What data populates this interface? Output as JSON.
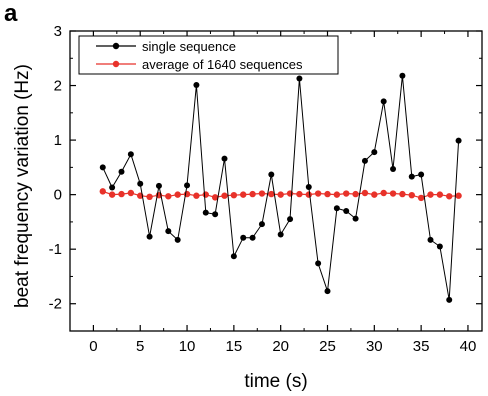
{
  "panel_label": "a",
  "chart_data": {
    "type": "line",
    "title": "",
    "xlabel": "time (s)",
    "ylabel": "beat frequency variation (Hz)",
    "xlim": [
      -2.5,
      41.5
    ],
    "ylim": [
      -2.5,
      3
    ],
    "xticks": [
      0,
      5,
      10,
      15,
      20,
      25,
      30,
      35,
      40
    ],
    "yticks": [
      -2,
      -1,
      0,
      1,
      2,
      3
    ],
    "grid": false,
    "legend_position": "top-left",
    "series": [
      {
        "name": "single sequence",
        "color": "#000000",
        "marker": "circle",
        "x": [
          1,
          2,
          3,
          4,
          5,
          6,
          7,
          8,
          9,
          10,
          11,
          12,
          13,
          14,
          15,
          16,
          17,
          18,
          19,
          20,
          21,
          22,
          23,
          24,
          25,
          26,
          27,
          28,
          29,
          30,
          31,
          32,
          33,
          34,
          35,
          36,
          37,
          38,
          39
        ],
        "values": [
          0.5,
          0.13,
          0.42,
          0.74,
          0.2,
          -0.77,
          0.16,
          -0.67,
          -0.83,
          0.17,
          2.01,
          -0.33,
          -0.36,
          0.66,
          -1.13,
          -0.79,
          -0.79,
          -0.54,
          0.37,
          -0.73,
          -0.45,
          2.13,
          0.14,
          -1.26,
          -1.77,
          -0.25,
          -0.3,
          -0.44,
          0.62,
          0.78,
          1.71,
          0.47,
          2.18,
          0.33,
          0.37,
          -0.83,
          -0.95,
          -1.93,
          0.99
        ]
      },
      {
        "name": "average of 1640 sequences",
        "color": "#e8322a",
        "marker": "circle",
        "x": [
          1,
          2,
          3,
          4,
          5,
          6,
          7,
          8,
          9,
          10,
          11,
          12,
          13,
          14,
          15,
          16,
          17,
          18,
          19,
          20,
          21,
          22,
          23,
          24,
          25,
          26,
          27,
          28,
          29,
          30,
          31,
          32,
          33,
          34,
          35,
          36,
          37,
          38,
          39
        ],
        "values": [
          0.06,
          0.0,
          0.01,
          0.03,
          -0.02,
          -0.04,
          -0.01,
          -0.03,
          0.0,
          0.01,
          -0.02,
          0.0,
          -0.05,
          -0.02,
          -0.01,
          0.0,
          0.01,
          0.02,
          0.01,
          0.0,
          0.02,
          0.01,
          0.0,
          0.02,
          0.01,
          0.0,
          0.02,
          0.01,
          0.03,
          0.0,
          0.03,
          0.02,
          0.01,
          -0.01,
          -0.06,
          0.0,
          0.0,
          -0.03,
          -0.02
        ]
      }
    ]
  }
}
